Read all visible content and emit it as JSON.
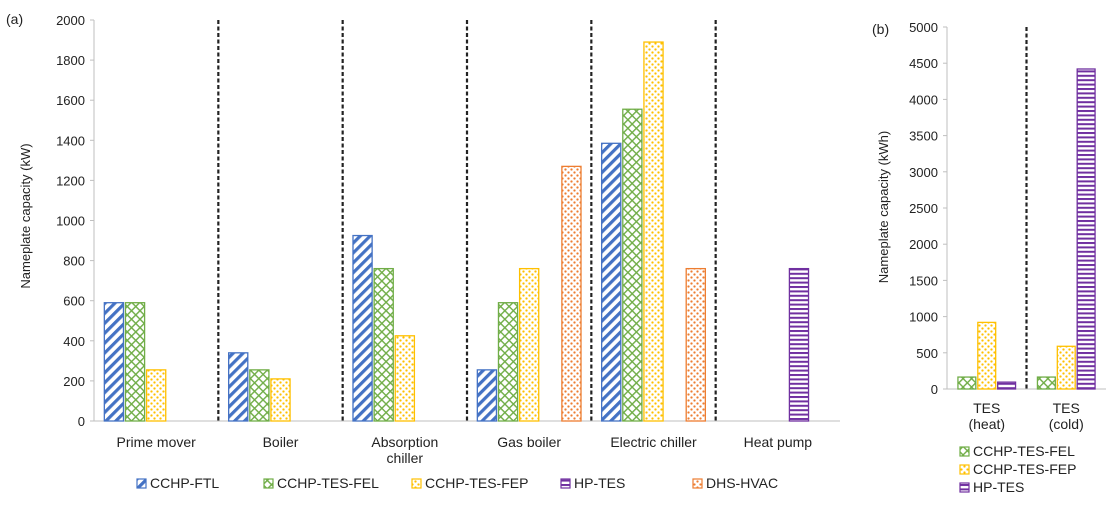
{
  "patterns": {
    "CCHP-FTL": {
      "kind": "diag",
      "color": "#4472C4"
    },
    "CCHP-TES-FEL": {
      "kind": "check",
      "color": "#70AD47"
    },
    "CCHP-TES-FEP": {
      "kind": "dots",
      "color": "#FFC000"
    },
    "HP-TES": {
      "kind": "hlines",
      "color": "#7030A0"
    },
    "DHS-HVAC": {
      "kind": "dots",
      "color": "#ED7D31"
    }
  },
  "chart_data": [
    {
      "type": "bar",
      "panel_label": "(a)",
      "ylabel": "Nameplate capacity (kW)",
      "ylim": [
        0,
        2000
      ],
      "yticks": [
        0,
        200,
        400,
        600,
        800,
        1000,
        1200,
        1400,
        1600,
        1800,
        2000
      ],
      "categories": [
        "Prime mover",
        "Boiler",
        "Absorption chiller",
        "Gas boiler",
        "Electric chiller",
        "Heat pump"
      ],
      "category_lines": [
        [
          "Prime mover"
        ],
        [
          "Boiler"
        ],
        [
          "Absorption",
          "chiller"
        ],
        [
          "Gas boiler"
        ],
        [
          "Electric chiller"
        ],
        [
          "Heat pump"
        ]
      ],
      "series": [
        {
          "name": "CCHP-FTL",
          "values": [
            590,
            340,
            925,
            255,
            1385,
            null
          ]
        },
        {
          "name": "CCHP-TES-FEL",
          "values": [
            590,
            255,
            760,
            590,
            1555,
            null
          ]
        },
        {
          "name": "CCHP-TES-FEP",
          "values": [
            255,
            210,
            425,
            760,
            1890,
            null
          ]
        },
        {
          "name": "HP-TES",
          "values": [
            null,
            null,
            null,
            null,
            null,
            760
          ]
        },
        {
          "name": "DHS-HVAC",
          "values": [
            null,
            null,
            null,
            1270,
            760,
            null
          ]
        }
      ],
      "legend": [
        "CCHP-FTL",
        "CCHP-TES-FEL",
        "CCHP-TES-FEP",
        "HP-TES",
        "DHS-HVAC"
      ],
      "legend_position": "bottom",
      "separators": "dashed lines between categories"
    },
    {
      "type": "bar",
      "panel_label": "(b)",
      "ylabel": "Nameplate capacity (kWh)",
      "ylim": [
        0,
        5000
      ],
      "yticks": [
        0,
        500,
        1000,
        1500,
        2000,
        2500,
        3000,
        3500,
        4000,
        4500,
        5000
      ],
      "categories": [
        "TES (heat)",
        "TES (cold)"
      ],
      "category_lines": [
        [
          "TES",
          "(heat)"
        ],
        [
          "TES",
          "(cold)"
        ]
      ],
      "series": [
        {
          "name": "CCHP-TES-FEL",
          "values": [
            165,
            165
          ]
        },
        {
          "name": "CCHP-TES-FEP",
          "values": [
            920,
            590
          ]
        },
        {
          "name": "HP-TES",
          "values": [
            95,
            4420
          ]
        }
      ],
      "legend": [
        "CCHP-TES-FEL",
        "CCHP-TES-FEP",
        "HP-TES"
      ],
      "legend_position": "bottom",
      "separators": "dashed line between categories"
    }
  ]
}
